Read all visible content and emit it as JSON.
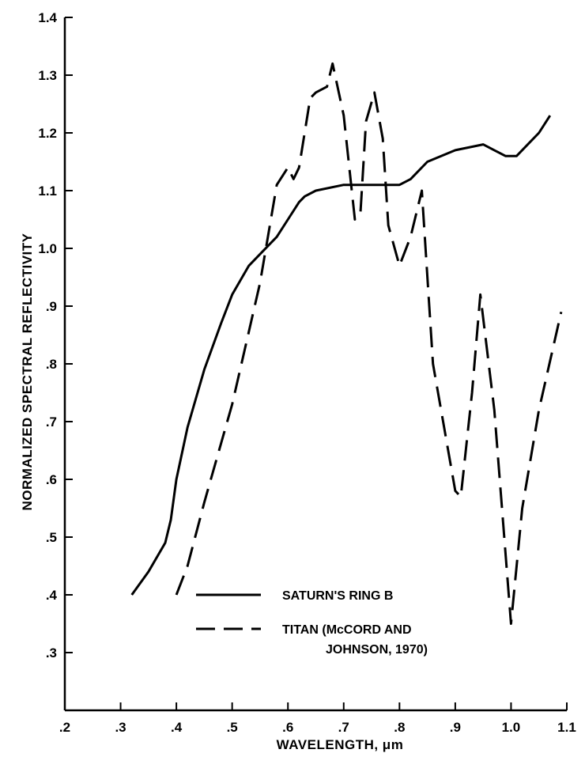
{
  "chart_data": {
    "type": "line",
    "title": "",
    "xlabel": "WAVELENGTH, μm",
    "ylabel": "NORMALIZED SPECTRAL REFLECTIVITY",
    "xlim": [
      0.2,
      1.1
    ],
    "ylim": [
      0.2,
      1.4
    ],
    "x_ticks": [
      ".2",
      ".3",
      ".4",
      ".5",
      ".6",
      ".7",
      ".8",
      ".9",
      "1.0",
      "1.1"
    ],
    "y_ticks": [
      ".3",
      ".4",
      ".5",
      ".6",
      ".7",
      ".8",
      ".9",
      "1.0",
      "1.1",
      "1.2",
      "1.3",
      "1.4"
    ],
    "grid": false,
    "legend_position": "lower-center",
    "series": [
      {
        "name": "SATURN'S RING B",
        "style": "solid",
        "color": "#000000",
        "x": [
          0.32,
          0.35,
          0.38,
          0.39,
          0.4,
          0.42,
          0.45,
          0.48,
          0.5,
          0.53,
          0.55,
          0.58,
          0.6,
          0.62,
          0.63,
          0.65,
          0.7,
          0.75,
          0.8,
          0.82,
          0.85,
          0.9,
          0.95,
          0.97,
          0.99,
          1.01,
          1.03,
          1.05,
          1.07
        ],
        "y": [
          0.4,
          0.44,
          0.49,
          0.53,
          0.6,
          0.69,
          0.79,
          0.87,
          0.92,
          0.97,
          0.99,
          1.02,
          1.05,
          1.08,
          1.09,
          1.1,
          1.11,
          1.11,
          1.11,
          1.12,
          1.15,
          1.17,
          1.18,
          1.17,
          1.16,
          1.16,
          1.18,
          1.2,
          1.23
        ]
      },
      {
        "name": "TITAN (McCORD AND JOHNSON, 1970)",
        "style": "dashed",
        "color": "#000000",
        "x": [
          0.4,
          0.42,
          0.45,
          0.5,
          0.55,
          0.58,
          0.6,
          0.61,
          0.62,
          0.64,
          0.65,
          0.67,
          0.68,
          0.7,
          0.72,
          0.73,
          0.74,
          0.755,
          0.77,
          0.78,
          0.8,
          0.82,
          0.84,
          0.86,
          0.9,
          0.91,
          0.93,
          0.945,
          0.97,
          1.0,
          1.02,
          1.05,
          1.09
        ],
        "y": [
          0.4,
          0.45,
          0.56,
          0.73,
          0.94,
          1.11,
          1.14,
          1.12,
          1.14,
          1.26,
          1.27,
          1.28,
          1.32,
          1.23,
          1.05,
          1.06,
          1.22,
          1.27,
          1.19,
          1.04,
          0.97,
          1.02,
          1.1,
          0.8,
          0.58,
          0.57,
          0.75,
          0.92,
          0.72,
          0.35,
          0.55,
          0.72,
          0.89
        ]
      }
    ],
    "legend": [
      {
        "label_line1": "SATURN'S RING B",
        "label_line2": ""
      },
      {
        "label_line1": "TITAN (McCORD AND",
        "label_line2": "JOHNSON, 1970)"
      }
    ]
  }
}
